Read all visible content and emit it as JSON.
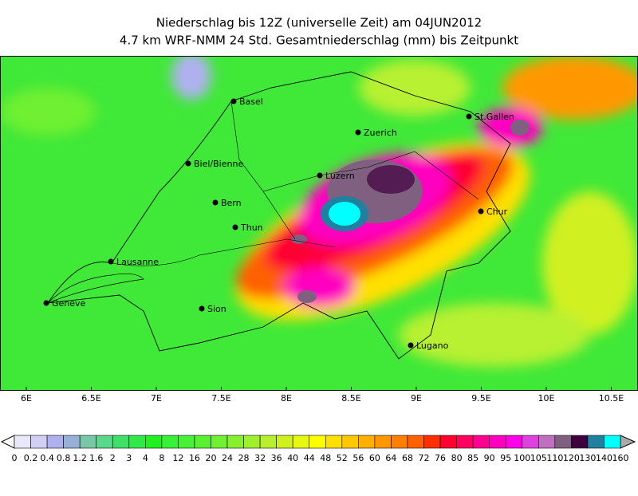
{
  "title": [
    "Niederschlag bis 12Z (universelle Zeit) am 04JUN2012",
    "4.7 km WRF-NMM 24 Std. Gesamtniederschlag (mm) bis Zeitpunkt"
  ],
  "cities": [
    "Basel",
    "Zuerich",
    "St.Gallen",
    "Biel/Bienne",
    "Luzern",
    "Bern",
    "Chur",
    "Thun",
    "Lausanne",
    "Geneve",
    "Sion",
    "Lugano"
  ],
  "x_axis": {
    "ticks": [
      "6E",
      "6.5E",
      "7E",
      "7.5E",
      "8E",
      "8.5E",
      "9E",
      "9.5E",
      "10E",
      "10.5E"
    ]
  },
  "colorbar": {
    "labels": [
      "0",
      "0.2",
      "0.4",
      "0.8",
      "1.2",
      "1.6",
      "2",
      "3",
      "4",
      "8",
      "12",
      "16",
      "20",
      "24",
      "28",
      "32",
      "36",
      "40",
      "44",
      "48",
      "52",
      "56",
      "60",
      "64",
      "68",
      "72",
      "76",
      "80",
      "85",
      "90",
      "95",
      "100",
      "105",
      "110",
      "120",
      "130",
      "140",
      "160"
    ],
    "colors": [
      "#e8e8fa",
      "#d0d0f5",
      "#b0b0f0",
      "#98b0d8",
      "#78c8a8",
      "#58d888",
      "#40e068",
      "#30e848",
      "#20f020",
      "#38f038",
      "#48f038",
      "#58f030",
      "#70f030",
      "#88f030",
      "#a0f030",
      "#b8f030",
      "#d0f020",
      "#e8f810",
      "#ffff00",
      "#ffe000",
      "#ffc800",
      "#ffb000",
      "#ff9800",
      "#ff8000",
      "#ff6000",
      "#ff3000",
      "#ff0030",
      "#ff0060",
      "#ff0090",
      "#ff00c0",
      "#ff00e8",
      "#e040e0",
      "#c070c0",
      "#806080",
      "#400040",
      "#2080a0",
      "#00ffff"
    ]
  }
}
